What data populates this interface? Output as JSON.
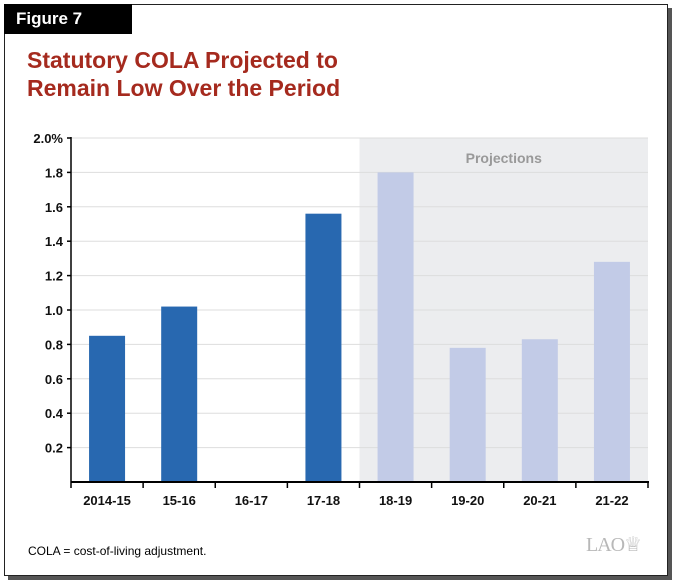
{
  "figure_label": "Figure 7",
  "title_line1": "Statutory COLA Projected to",
  "title_line2": "Remain Low Over the Period",
  "note": "COLA = cost-of-living adjustment.",
  "logo": "LAO",
  "chart_data": {
    "type": "bar",
    "categories": [
      "2014-15",
      "15-16",
      "16-17",
      "17-18",
      "18-19",
      "19-20",
      "20-21",
      "21-22"
    ],
    "values": [
      0.85,
      1.02,
      0,
      1.56,
      1.8,
      0.78,
      0.83,
      1.28
    ],
    "projected": [
      false,
      false,
      false,
      false,
      true,
      true,
      true,
      true
    ],
    "annotation": "Projections",
    "ylim": [
      0,
      2.0
    ],
    "yticks": [
      0.2,
      0.4,
      0.6,
      0.8,
      1.0,
      1.2,
      1.4,
      1.6,
      1.8,
      2.0
    ],
    "ytick_labels": [
      "0.2",
      "0.4",
      "0.6",
      "0.8",
      "1.0",
      "1.2",
      "1.4",
      "1.6",
      "1.8",
      "2.0%"
    ],
    "grid": true,
    "colors": {
      "actual": "#2868b0",
      "projected": "#c2cbe7",
      "projection_bg": "#ecedef",
      "title": "#a52a1e"
    }
  }
}
